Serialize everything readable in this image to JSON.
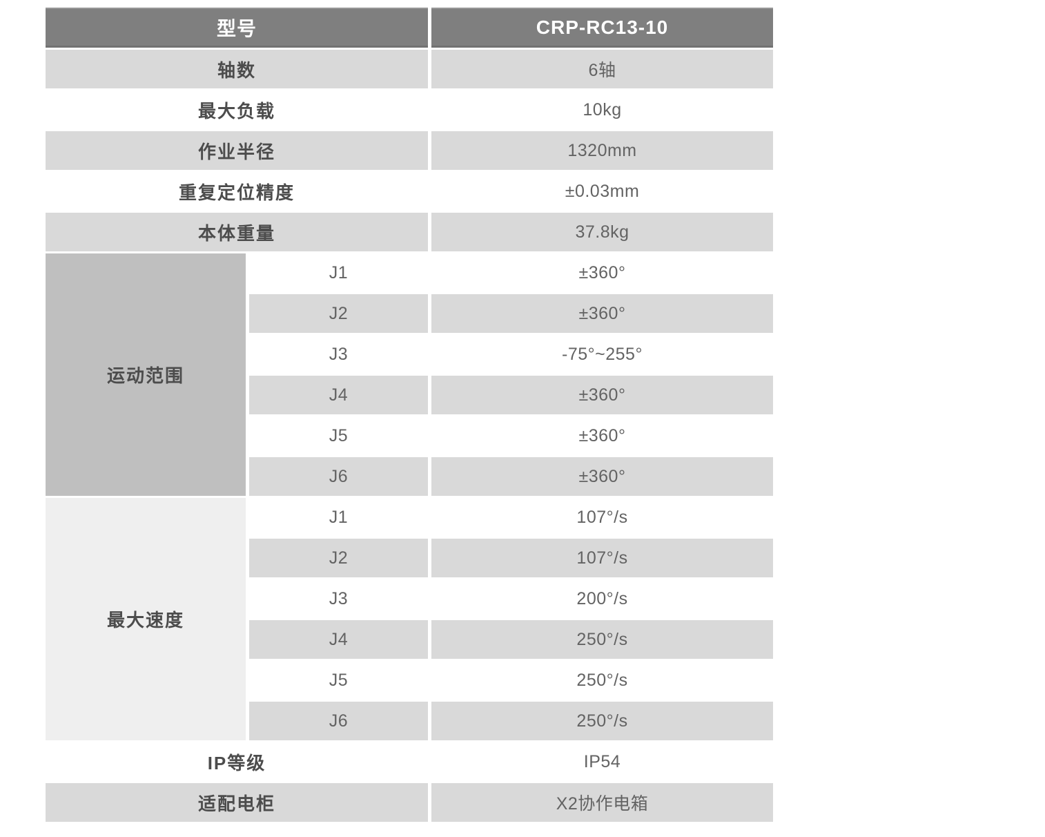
{
  "table": {
    "header": {
      "label": "型号",
      "value": "CRP-RC13-10"
    },
    "rows": [
      {
        "label": "轴数",
        "value": "6轴"
      },
      {
        "label": "最大负载",
        "value": "10kg"
      },
      {
        "label": "作业半径",
        "value": "1320mm"
      },
      {
        "label": "重复定位精度",
        "value": "±0.03mm"
      },
      {
        "label": "本体重量",
        "value": "37.8kg"
      }
    ],
    "motion_range": {
      "label": "运动范围",
      "joints": [
        {
          "joint": "J1",
          "value": "±360°"
        },
        {
          "joint": "J2",
          "value": "±360°"
        },
        {
          "joint": "J3",
          "value": "-75°~255°"
        },
        {
          "joint": "J4",
          "value": "±360°"
        },
        {
          "joint": "J5",
          "value": "±360°"
        },
        {
          "joint": "J6",
          "value": "±360°"
        }
      ]
    },
    "max_speed": {
      "label": "最大速度",
      "joints": [
        {
          "joint": "J1",
          "value": "107°/s"
        },
        {
          "joint": "J2",
          "value": "107°/s"
        },
        {
          "joint": "J3",
          "value": "200°/s"
        },
        {
          "joint": "J4",
          "value": "250°/s"
        },
        {
          "joint": "J5",
          "value": "250°/s"
        },
        {
          "joint": "J6",
          "value": "250°/s"
        }
      ]
    },
    "bottom_rows": [
      {
        "label": "IP等级",
        "value": "IP54"
      },
      {
        "label": "适配电柜",
        "value": "X2协作电箱"
      }
    ],
    "colors": {
      "header_bg": "#7f7f7f",
      "header_text": "#ffffff",
      "row_gray": "#d9d9d9",
      "row_white": "#ffffff",
      "motion_group_bg": "#bfbfbf",
      "speed_group_bg": "#efefef",
      "label_text": "#4c4c4c",
      "value_text": "#636363"
    }
  }
}
